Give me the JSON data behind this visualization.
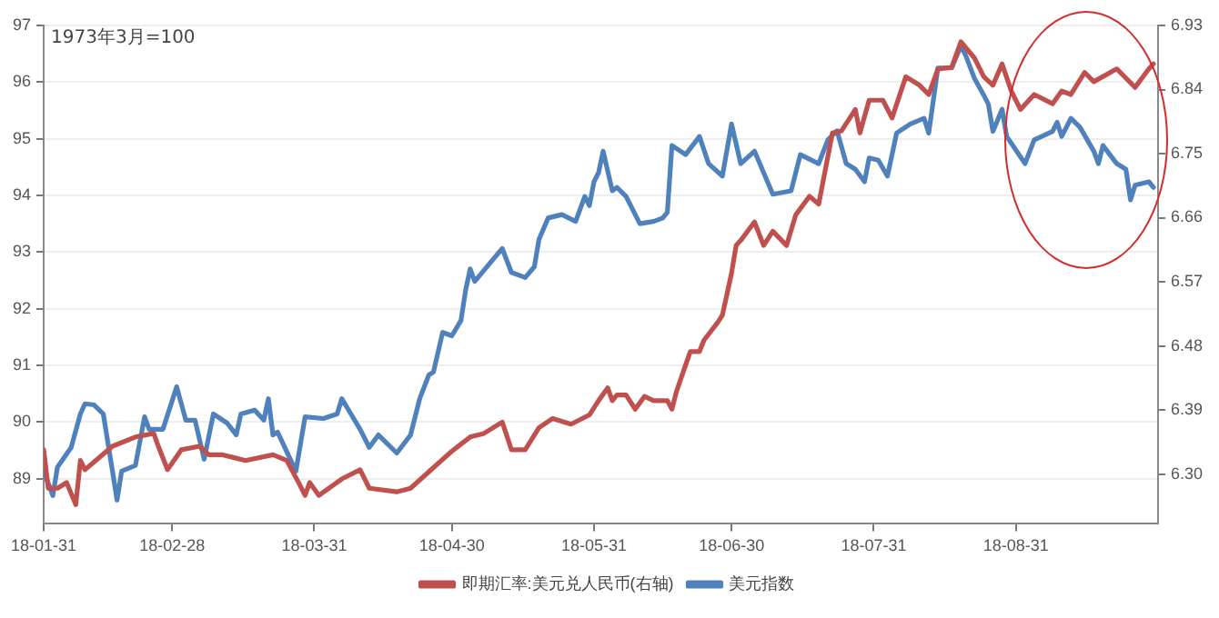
{
  "chart_data": {
    "type": "line",
    "xlim": [
      "--01-31",
      "--10-01"
    ],
    "xticks": [
      {
        "value": "--01-31",
        "label": "18-01-31"
      },
      {
        "value": "--02-28",
        "label": "18-02-28"
      },
      {
        "value": "--03-31",
        "label": "18-03-31"
      },
      {
        "value": "--04-30",
        "label": "18-04-30"
      },
      {
        "value": "--05-31",
        "label": "18-05-31"
      },
      {
        "value": "--06-30",
        "label": "18-06-30"
      },
      {
        "value": "--07-31",
        "label": "18-07-31"
      },
      {
        "value": "--08-31",
        "label": "18-08-31"
      }
    ],
    "ylim": [
      88.2,
      97
    ],
    "yticks": [
      89,
      90,
      91,
      92,
      93,
      94,
      95,
      96,
      97
    ],
    "y2lim": [
      6.23,
      6.93
    ],
    "y2ticks": [
      {
        "value": 6.3,
        "label": "6.30"
      },
      {
        "value": 6.39,
        "label": "6.39"
      },
      {
        "value": 6.48,
        "label": "6.48"
      },
      {
        "value": 6.57,
        "label": "6.57"
      },
      {
        "value": 6.66,
        "label": "6.66"
      },
      {
        "value": 6.75,
        "label": "6.75"
      },
      {
        "value": 6.84,
        "label": "6.84"
      },
      {
        "value": 6.93,
        "label": "6.93"
      }
    ],
    "grid": "y",
    "legend": "bottom",
    "marker": "none",
    "line_style": "solid",
    "annotations": [
      "1973年3月=100"
    ],
    "series": [
      {
        "name": "即期汇率:美元兑人民币(右轴)",
        "color": "#c0504d",
        "axis": "y2",
        "x": [
          "--01-31",
          "--02-01",
          "--02-03",
          "--02-05",
          "--02-07",
          "--02-08",
          "--02-09",
          "--02-15",
          "--02-20",
          "--02-24",
          "--02-25",
          "--02-27",
          "--03-02",
          "--03-06",
          "--03-08",
          "--03-11",
          "--03-16",
          "--03-22",
          "--03-25",
          "--03-28",
          "--03-29",
          "--03-30",
          "--04-01",
          "--04-06",
          "--04-10",
          "--04-12",
          "--04-18",
          "--04-21",
          "--04-26",
          "--04-30",
          "--05-04",
          "--05-07",
          "--05-11",
          "--05-13",
          "--05-16",
          "--05-19",
          "--05-22",
          "--05-26",
          "--05-30",
          "--06-01",
          "--06-03",
          "--06-04",
          "--06-05",
          "--06-07",
          "--06-09",
          "--06-11",
          "--06-13",
          "--06-16",
          "--06-17",
          "--06-18",
          "--06-21",
          "--06-23",
          "--06-24",
          "--06-27",
          "--06-28",
          "--06-30",
          "--07-01",
          "--07-02",
          "--07-05",
          "--07-07",
          "--07-09",
          "--07-12",
          "--07-14",
          "--07-17",
          "--07-19",
          "--07-22",
          "--07-24",
          "--07-27",
          "--07-28",
          "--07-30",
          "--08-02",
          "--08-04",
          "--08-07",
          "--08-10",
          "--08-12",
          "--08-14",
          "--08-17",
          "--08-19",
          "--08-22",
          "--08-24",
          "--08-26",
          "--08-28",
          "--08-30",
          "--09-01",
          "--09-04",
          "--09-08",
          "--09-10",
          "--09-12",
          "--09-15",
          "--09-17",
          "--09-22",
          "--09-26",
          "--09-29",
          "--09-30"
        ],
        "values": [
          6.334,
          6.28,
          6.28,
          6.288,
          6.257,
          6.319,
          6.306,
          6.339,
          6.352,
          6.357,
          6.339,
          6.306,
          6.334,
          6.339,
          6.327,
          6.327,
          6.319,
          6.327,
          6.319,
          6.283,
          6.27,
          6.288,
          6.27,
          6.293,
          6.306,
          6.28,
          6.275,
          6.28,
          6.309,
          6.332,
          6.352,
          6.357,
          6.373,
          6.334,
          6.334,
          6.365,
          6.378,
          6.37,
          6.383,
          6.403,
          6.421,
          6.403,
          6.411,
          6.411,
          6.391,
          6.409,
          6.403,
          6.403,
          6.391,
          6.416,
          6.472,
          6.472,
          6.488,
          6.513,
          6.523,
          6.582,
          6.621,
          6.628,
          6.654,
          6.621,
          6.641,
          6.621,
          6.664,
          6.69,
          6.679,
          6.779,
          6.782,
          6.812,
          6.779,
          6.825,
          6.825,
          6.8,
          6.858,
          6.846,
          6.833,
          6.869,
          6.871,
          6.907,
          6.884,
          6.858,
          6.846,
          6.876,
          6.838,
          6.812,
          6.833,
          6.82,
          6.838,
          6.833,
          6.864,
          6.851,
          6.869,
          6.843,
          6.869,
          6.876
        ]
      },
      {
        "name": "美元指数",
        "color": "#4f81bd",
        "x": [
          "--01-31",
          "--02-02",
          "--02-03",
          "--02-06",
          "--02-08",
          "--02-09",
          "--02-11",
          "--02-13",
          "--02-15",
          "--02-16",
          "--02-17",
          "--02-20",
          "--02-22",
          "--02-23",
          "--02-26",
          "--03-01",
          "--03-03",
          "--03-05",
          "--03-07",
          "--03-09",
          "--03-12",
          "--03-14",
          "--03-15",
          "--03-18",
          "--03-20",
          "--03-21",
          "--03-22",
          "--03-23",
          "--03-27",
          "--03-29",
          "--04-02",
          "--04-05",
          "--04-06",
          "--04-08",
          "--04-10",
          "--04-12",
          "--04-14",
          "--04-18",
          "--04-21",
          "--04-23",
          "--04-25",
          "--04-26",
          "--04-28",
          "--04-30",
          "--05-02",
          "--05-03",
          "--05-04",
          "--05-05",
          "--05-09",
          "--05-11",
          "--05-13",
          "--05-16",
          "--05-18",
          "--05-19",
          "--05-21",
          "--05-24",
          "--05-27",
          "--05-29",
          "--05-30",
          "--05-31",
          "--06-01",
          "--06-02",
          "--06-04",
          "--06-05",
          "--06-07",
          "--06-10",
          "--06-13",
          "--06-15",
          "--06-16",
          "--06-17",
          "--06-20",
          "--06-23",
          "--06-25",
          "--06-28",
          "--06-30",
          "--07-02",
          "--07-05",
          "--07-09",
          "--07-13",
          "--07-15",
          "--07-19",
          "--07-21",
          "--07-23",
          "--07-25",
          "--07-27",
          "--07-29",
          "--07-30",
          "--08-01",
          "--08-03",
          "--08-05",
          "--08-08",
          "--08-11",
          "--08-12",
          "--08-14",
          "--08-17",
          "--08-19",
          "--08-20",
          "--08-22",
          "--08-24",
          "--08-25",
          "--08-26",
          "--08-28",
          "--08-29",
          "--09-02",
          "--09-04",
          "--09-08",
          "--09-09",
          "--09-10",
          "--09-12",
          "--09-14",
          "--09-17",
          "--09-18",
          "--09-19",
          "--09-22",
          "--09-24",
          "--09-25",
          "--09-26",
          "--09-29",
          "--09-30"
        ],
        "values": [
          89.13,
          88.7,
          89.2,
          89.55,
          90.14,
          90.32,
          90.3,
          90.14,
          89.13,
          88.62,
          89.13,
          89.23,
          90.09,
          89.87,
          89.87,
          90.62,
          90.03,
          90.03,
          89.34,
          90.14,
          89.98,
          89.77,
          90.14,
          90.21,
          90.03,
          90.41,
          89.77,
          89.82,
          89.13,
          90.09,
          90.06,
          90.14,
          90.41,
          90.14,
          89.87,
          89.55,
          89.77,
          89.45,
          89.77,
          90.41,
          90.83,
          90.88,
          91.58,
          91.52,
          91.79,
          92.32,
          92.7,
          92.48,
          92.87,
          93.06,
          92.64,
          92.55,
          92.74,
          93.22,
          93.6,
          93.66,
          93.54,
          93.98,
          93.82,
          94.24,
          94.4,
          94.78,
          94.08,
          94.14,
          93.98,
          93.5,
          93.54,
          93.6,
          93.7,
          94.88,
          94.72,
          95.04,
          94.56,
          94.34,
          95.26,
          94.56,
          94.78,
          94.02,
          94.08,
          94.72,
          94.56,
          94.98,
          95.14,
          94.56,
          94.46,
          94.24,
          94.66,
          94.62,
          94.34,
          95.1,
          95.26,
          95.36,
          95.1,
          96.25,
          96.25,
          96.64,
          96.48,
          96.06,
          95.77,
          95.61,
          95.13,
          95.52,
          95.04,
          94.56,
          94.98,
          95.13,
          95.29,
          95.04,
          95.36,
          95.2,
          94.78,
          94.56,
          94.88,
          94.56,
          94.46,
          93.92,
          94.18,
          94.24,
          94.14
        ]
      }
    ]
  }
}
